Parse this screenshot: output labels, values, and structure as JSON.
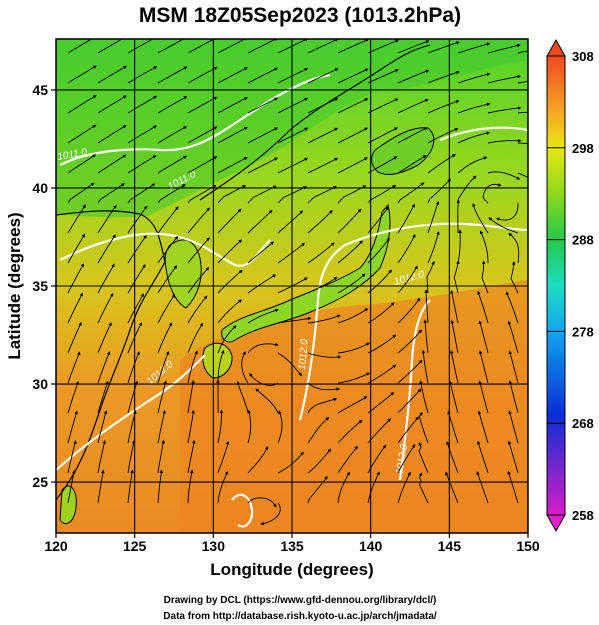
{
  "title": "MSM 18Z05Sep2023 (1013.2hPa)",
  "xlabel": "Longitude (degrees)",
  "ylabel": "Latitude  (degrees)",
  "credits": [
    "Drawing by DCL (https://www.gfd-dennou.org/library/dcl/)",
    "Data from http://database.rish.kyoto-u.ac.jp/arch/jmadata/"
  ],
  "map": {
    "lon_range": [
      120,
      150
    ],
    "lat_range": [
      22.4,
      47.6
    ],
    "lon_ticks": [
      "120",
      "125",
      "130",
      "135",
      "140",
      "145",
      "150"
    ],
    "lat_ticks": [
      "25",
      "30",
      "35",
      "40",
      "45"
    ],
    "grid_interval_deg": 5,
    "isobar_labels": [
      "1011.0",
      "1011.0",
      "1012.0",
      "1012.0",
      "1012.0",
      "1012.0"
    ]
  },
  "colorbar": {
    "ticks": [
      "258",
      "268",
      "278",
      "288",
      "298",
      "308"
    ],
    "colors": [
      "#d81ec8",
      "#0a2fd6",
      "#11a6f0",
      "#1ddcc0",
      "#22c94a",
      "#8fd81e",
      "#e8e810",
      "#f5a524",
      "#ef4a1e"
    ]
  }
}
